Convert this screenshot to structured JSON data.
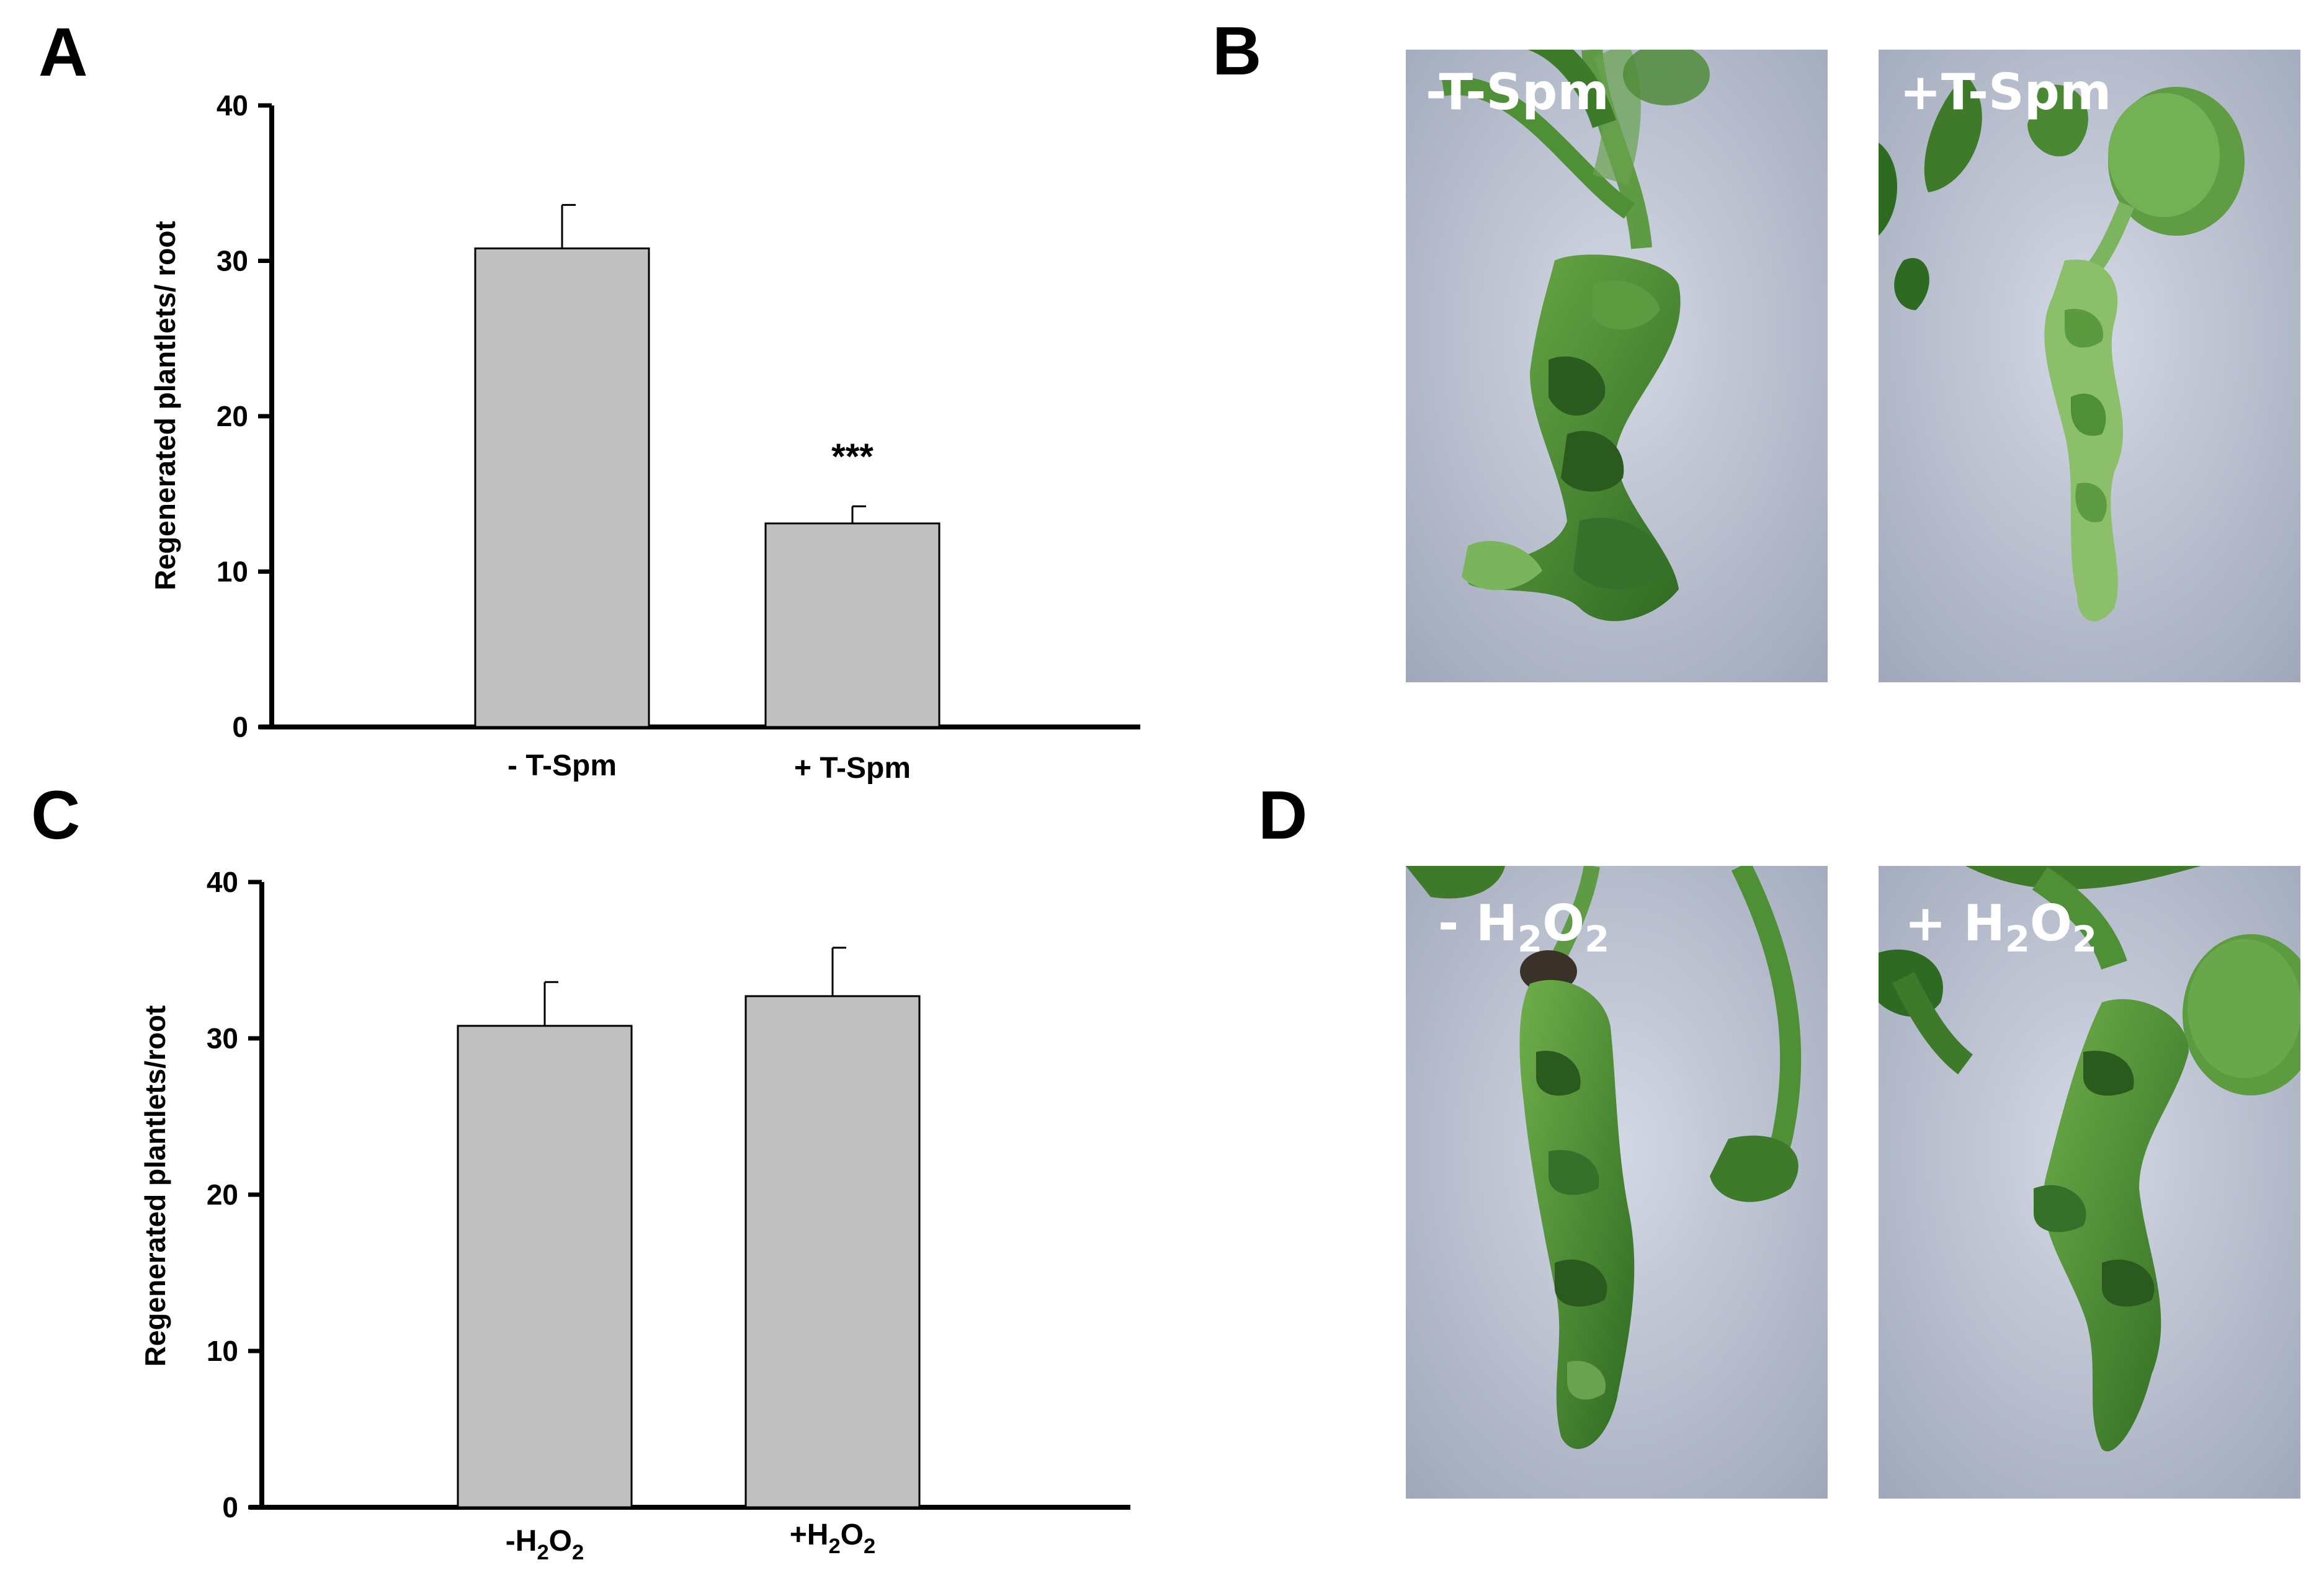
{
  "panels": {
    "A": "A",
    "B": "B",
    "C": "C",
    "D": "D"
  },
  "colors": {
    "bar_fill": "#c0c0c0",
    "photo_background": "#c5cbd8",
    "tissue_green": "#4f8f35"
  },
  "chart_data": [
    {
      "panel": "A",
      "type": "bar",
      "categories": [
        "- T-Spm",
        "+ T-Spm"
      ],
      "values": [
        30.8,
        13.1
      ],
      "errors": [
        2.8,
        1.1
      ],
      "annotations": [
        "",
        "***"
      ],
      "ylabel": "Regenerated plantlets/ root",
      "xlabel": "",
      "title": "",
      "ylim": [
        0,
        40
      ],
      "yticks": [
        0,
        10,
        20,
        30,
        40
      ],
      "grid": false
    },
    {
      "panel": "C",
      "type": "bar",
      "categories": [
        {
          "base": "-H",
          "sub": "2",
          "mid": "O",
          "sub2": "2"
        },
        {
          "base": "+H",
          "sub": "2",
          "mid": "O",
          "sub2": "2"
        }
      ],
      "values": [
        30.8,
        32.7
      ],
      "errors": [
        2.8,
        3.1
      ],
      "annotations": [
        "",
        ""
      ],
      "ylabel": "Regenerated plantlets/root",
      "xlabel": "",
      "title": "",
      "ylim": [
        0,
        40
      ],
      "yticks": [
        0,
        10,
        20,
        30,
        40
      ],
      "grid": false
    }
  ],
  "photos": {
    "B_left": "-T-Spm",
    "B_right": "+T-Spm",
    "D_left": {
      "base": "- H",
      "sub": "2",
      "mid": "O",
      "sub2": "2"
    },
    "D_right": {
      "base": "+ H",
      "sub": "2",
      "mid": "O",
      "sub2": "2"
    }
  }
}
